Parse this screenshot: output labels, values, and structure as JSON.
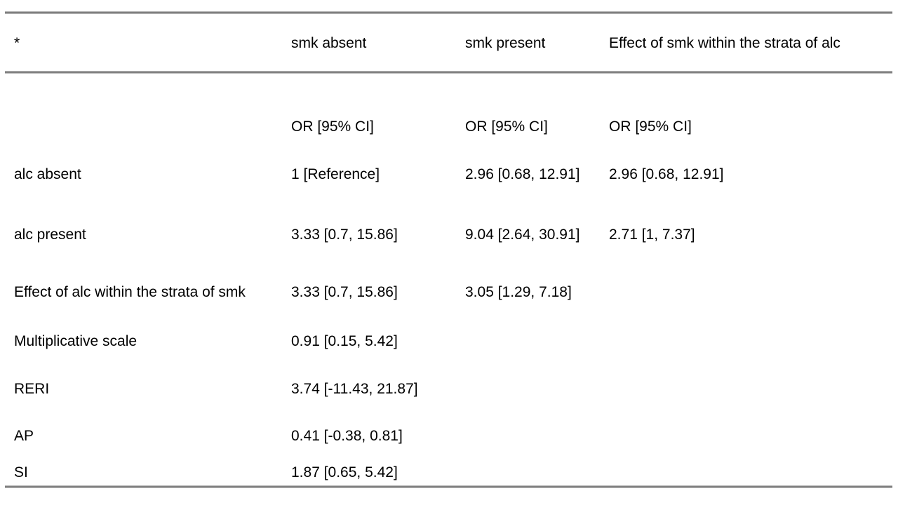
{
  "colors": {
    "background": "#ffffff",
    "rule": "#808080",
    "text": "#000000"
  },
  "table": {
    "header": {
      "cells": [
        "*",
        "smk absent",
        "smk present",
        "Effect of smk within the strata of alc"
      ]
    },
    "rows": [
      {
        "cells": [
          "",
          "OR [95% CI]",
          "OR [95% CI]",
          "OR [95% CI]"
        ]
      },
      {
        "cells": [
          "alc absent",
          "1 [Reference]",
          "2.96 [0.68, 12.91]",
          "2.96 [0.68, 12.91]"
        ]
      },
      {
        "cells": [
          "alc present",
          "3.33 [0.7, 15.86]",
          "9.04 [2.64, 30.91]",
          "2.71 [1, 7.37]"
        ]
      },
      {
        "cells": [
          "Effect of alc within the strata of smk",
          "3.33 [0.7, 15.86]",
          "3.05 [1.29, 7.18]",
          ""
        ]
      },
      {
        "cells": [
          "Multiplicative scale",
          "0.91 [0.15, 5.42]",
          "",
          ""
        ]
      },
      {
        "cells": [
          "RERI",
          "3.74 [-11.43, 21.87]",
          "",
          ""
        ]
      },
      {
        "cells": [
          "AP",
          "0.41 [-0.38, 0.81]",
          "",
          ""
        ]
      },
      {
        "cells": [
          "SI",
          "1.87 [0.65, 5.42]",
          "",
          ""
        ]
      }
    ]
  }
}
